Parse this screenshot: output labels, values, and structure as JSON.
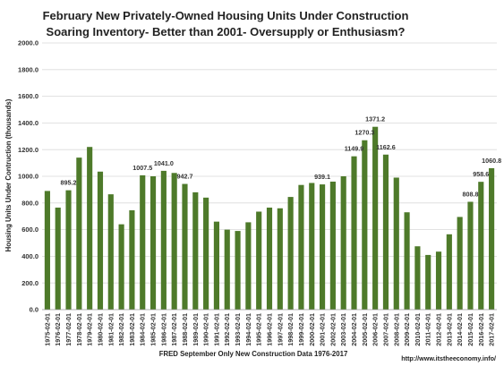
{
  "chart_data": {
    "type": "bar",
    "title": "February New Privately-Owned Housing Units Under Construction",
    "subtitle": "Soaring Inventory- Better than 2001- Oversupply or Enthusiasm?",
    "ylabel": "Housing Units Under Contruction (thousands)",
    "xlabel": "FRED September Only New Construction Data 1976-2017",
    "source_url": "http://www.itstheeconomy.info/",
    "ylim": [
      0,
      2000
    ],
    "yticks": [
      0,
      200,
      400,
      600,
      800,
      1000,
      1200,
      1400,
      1600,
      1800,
      2000
    ],
    "ytick_labels": [
      "0.0",
      "200.0",
      "400.0",
      "600.0",
      "800.0",
      "1000.0",
      "1200.0",
      "1400.0",
      "1600.0",
      "1800.0",
      "2000.0"
    ],
    "grid": true,
    "legend": "none",
    "bar_color": "#4e7a2a",
    "categories": [
      "1975-02-01",
      "1976-02-01",
      "1977-02-01",
      "1978-02-01",
      "1979-02-01",
      "1980-02-01",
      "1981-02-01",
      "1982-02-01",
      "1983-02-01",
      "1984-02-01",
      "1985-02-01",
      "1986-02-01",
      "1987-02-01",
      "1988-02-01",
      "1989-02-01",
      "1990-02-01",
      "1991-02-01",
      "1992-02-01",
      "1993-02-01",
      "1994-02-01",
      "1995-02-01",
      "1996-02-01",
      "1997-02-01",
      "1998-02-01",
      "1999-02-01",
      "2000-02-01",
      "2001-02-01",
      "2002-02-01",
      "2003-02-01",
      "2004-02-01",
      "2005-02-01",
      "2006-02-01",
      "2007-02-01",
      "2008-02-01",
      "2009-02-01",
      "2010-02-01",
      "2011-02-01",
      "2012-02-01",
      "2013-02-01",
      "2014-02-01",
      "2015-02-01",
      "2016-02-01",
      "2017-02-01"
    ],
    "values": [
      890,
      765,
      895.2,
      1140,
      1220,
      1035,
      865,
      640,
      745,
      1007.5,
      1000,
      1041.0,
      1025,
      942.7,
      880,
      840,
      660,
      600,
      590,
      655,
      735,
      765,
      760,
      845,
      935,
      950,
      939.1,
      960,
      1000,
      1149.9,
      1270.3,
      1371.2,
      1162.6,
      990,
      730,
      475,
      410,
      435,
      565,
      695,
      808.8,
      958.6,
      1060.8
    ],
    "data_labels": [
      {
        "category": "1977-02-01",
        "text": "895.2"
      },
      {
        "category": "1984-02-01",
        "text": "1007.5"
      },
      {
        "category": "1986-02-01",
        "text": "1041.0"
      },
      {
        "category": "1988-02-01",
        "text": "942.7"
      },
      {
        "category": "2001-02-01",
        "text": "939.1"
      },
      {
        "category": "2004-02-01",
        "text": "1149.9"
      },
      {
        "category": "2005-02-01",
        "text": "1270.3"
      },
      {
        "category": "2006-02-01",
        "text": "1371.2"
      },
      {
        "category": "2007-02-01",
        "text": "1162.6"
      },
      {
        "category": "2015-02-01",
        "text": "808.8"
      },
      {
        "category": "2016-02-01",
        "text": "958.6"
      },
      {
        "category": "2017-02-01",
        "text": "1060.8"
      }
    ]
  }
}
